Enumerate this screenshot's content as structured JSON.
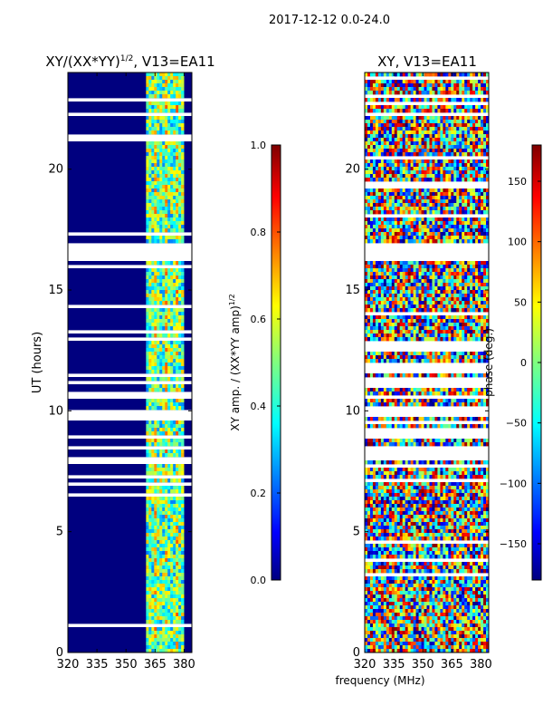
{
  "figure_title": "2017-12-12 0.0-24.0",
  "shared_xlabel": "frequency (MHz)",
  "chart_data": [
    {
      "type": "heatmap",
      "title_prefix": "XY/(XX*YY)",
      "title_sup": "1/2",
      "title_suffix": ", V13=EA11",
      "ylabel": "UT (hours)",
      "xlim": [
        320,
        384
      ],
      "ylim": [
        0,
        24
      ],
      "xticks": [
        320,
        335,
        350,
        365,
        380
      ],
      "yticks": [
        0,
        5,
        10,
        15,
        20
      ],
      "colormap": "jet",
      "colorbar": {
        "label_prefix": "XY amp. / (XX*YY amp)",
        "label_sup": "1/2",
        "range": [
          0.0,
          1.0
        ],
        "ticks": [
          "0.0",
          "0.2",
          "0.4",
          "0.6",
          "0.8",
          "1.0"
        ]
      }
    },
    {
      "type": "heatmap",
      "title": "XY, V13=EA11",
      "xlim": [
        320,
        384
      ],
      "ylim": [
        0,
        24
      ],
      "xticks": [
        320,
        335,
        350,
        365,
        380
      ],
      "yticks": [
        0,
        5,
        10,
        15,
        20
      ],
      "colormap": "jet",
      "colorbar": {
        "label": "phase (deg.)",
        "range": [
          -180,
          180
        ],
        "ticks": [
          "−150",
          "−100",
          "−50",
          "0",
          "50",
          "100",
          "150"
        ]
      }
    }
  ],
  "colors": {
    "jet": [
      "#00007f",
      "#0000ff",
      "#007fff",
      "#00ffff",
      "#7fff7f",
      "#ffff00",
      "#ff7f00",
      "#ff0000",
      "#7f0000"
    ]
  }
}
